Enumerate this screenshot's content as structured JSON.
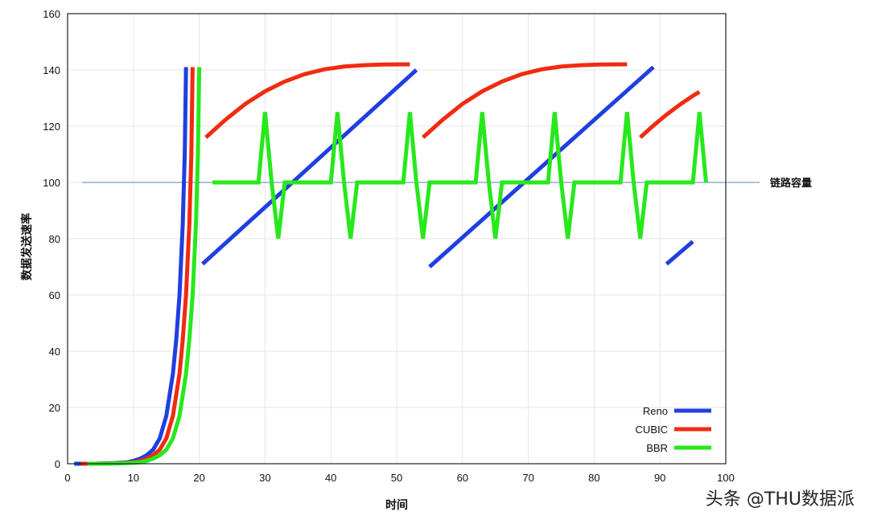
{
  "chart_data": {
    "type": "line",
    "title": "",
    "xlabel": "时间",
    "ylabel": "数据发送速率",
    "xlim": [
      0,
      100
    ],
    "ylim": [
      0,
      160
    ],
    "xticks": [
      0,
      10,
      20,
      30,
      40,
      50,
      60,
      70,
      80,
      90,
      100
    ],
    "yticks": [
      0,
      20,
      40,
      60,
      80,
      100,
      120,
      140,
      160
    ],
    "grid": true,
    "legend_position": "bottom-right",
    "reference_line": {
      "y": 100,
      "label": "链路容量",
      "color": "#5b7fc7"
    },
    "series": [
      {
        "name": "Reno",
        "color": "#1f3fe0",
        "segments": [
          [
            [
              1,
              0
            ],
            [
              4,
              0
            ],
            [
              7,
              0.2
            ],
            [
              9,
              0.5
            ],
            [
              10,
              1
            ],
            [
              11,
              1.8
            ],
            [
              12,
              3
            ],
            [
              13,
              5
            ],
            [
              14,
              9
            ],
            [
              15,
              17
            ],
            [
              16,
              32
            ],
            [
              16.5,
              44
            ],
            [
              17,
              60
            ],
            [
              17.5,
              85
            ],
            [
              17.8,
              110
            ],
            [
              18,
              141
            ]
          ],
          [
            [
              20.5,
              71
            ],
            [
              53,
              140
            ]
          ],
          [
            [
              55,
              70
            ],
            [
              89,
              141
            ]
          ],
          [
            [
              91,
              71
            ],
            [
              95,
              79
            ]
          ]
        ]
      },
      {
        "name": "CUBIC",
        "color": "#f02b10",
        "segments": [
          [
            [
              2,
              0
            ],
            [
              5,
              0
            ],
            [
              8,
              0.2
            ],
            [
              10,
              0.5
            ],
            [
              11,
              1
            ],
            [
              12,
              1.8
            ],
            [
              13,
              3
            ],
            [
              14,
              5
            ],
            [
              15,
              9
            ],
            [
              16,
              17
            ],
            [
              17,
              32
            ],
            [
              17.5,
              44
            ],
            [
              18,
              60
            ],
            [
              18.5,
              85
            ],
            [
              18.8,
              110
            ],
            [
              19,
              141
            ]
          ],
          [
            [
              21,
              116
            ],
            [
              24,
              122.3
            ],
            [
              27,
              127.9
            ],
            [
              30,
              132.4
            ],
            [
              33,
              135.9
            ],
            [
              36,
              138.5
            ],
            [
              39,
              140.2
            ],
            [
              42,
              141.2
            ],
            [
              45,
              141.7
            ],
            [
              48,
              141.9
            ],
            [
              52,
              142
            ]
          ],
          [
            [
              54,
              116
            ],
            [
              57,
              122.3
            ],
            [
              60,
              127.9
            ],
            [
              63,
              132.4
            ],
            [
              66,
              135.9
            ],
            [
              69,
              138.5
            ],
            [
              72,
              140.2
            ],
            [
              75,
              141.2
            ],
            [
              78,
              141.7
            ],
            [
              81,
              141.9
            ],
            [
              85,
              142
            ]
          ],
          [
            [
              87,
              116
            ],
            [
              89,
              120.2
            ],
            [
              91,
              124.1
            ],
            [
              93,
              127.6
            ],
            [
              95,
              130.8
            ],
            [
              96,
              132.2
            ]
          ]
        ]
      },
      {
        "name": "BBR",
        "color": "#27e81c",
        "segments": [
          [
            [
              3,
              0
            ],
            [
              6,
              0
            ],
            [
              9,
              0.2
            ],
            [
              11,
              0.5
            ],
            [
              12,
              1
            ],
            [
              13,
              1.8
            ],
            [
              14,
              3
            ],
            [
              15,
              5
            ],
            [
              16,
              9
            ],
            [
              17,
              17
            ],
            [
              18,
              32
            ],
            [
              18.5,
              44
            ],
            [
              19,
              60
            ],
            [
              19.5,
              85
            ],
            [
              19.8,
              110
            ],
            [
              20,
              141
            ]
          ],
          [
            [
              22,
              100
            ],
            [
              29,
              100
            ],
            [
              30,
              125
            ],
            [
              31,
              100
            ],
            [
              32,
              80
            ],
            [
              33,
              100
            ],
            [
              40,
              100
            ],
            [
              41,
              125
            ],
            [
              42,
              100
            ],
            [
              43,
              80
            ],
            [
              44,
              100
            ],
            [
              51,
              100
            ],
            [
              52,
              125
            ],
            [
              53,
              100
            ],
            [
              54,
              80
            ],
            [
              55,
              100
            ],
            [
              62,
              100
            ],
            [
              63,
              125
            ],
            [
              64,
              100
            ],
            [
              65,
              80
            ],
            [
              66,
              100
            ],
            [
              73,
              100
            ],
            [
              74,
              125
            ],
            [
              75,
              100
            ],
            [
              76,
              80
            ],
            [
              77,
              100
            ],
            [
              84,
              100
            ],
            [
              85,
              125
            ],
            [
              86,
              100
            ],
            [
              87,
              80
            ],
            [
              88,
              100
            ],
            [
              95,
              100
            ],
            [
              96,
              125
            ],
            [
              97,
              100
            ]
          ]
        ]
      }
    ]
  },
  "watermark": "头条 @THU数据派"
}
